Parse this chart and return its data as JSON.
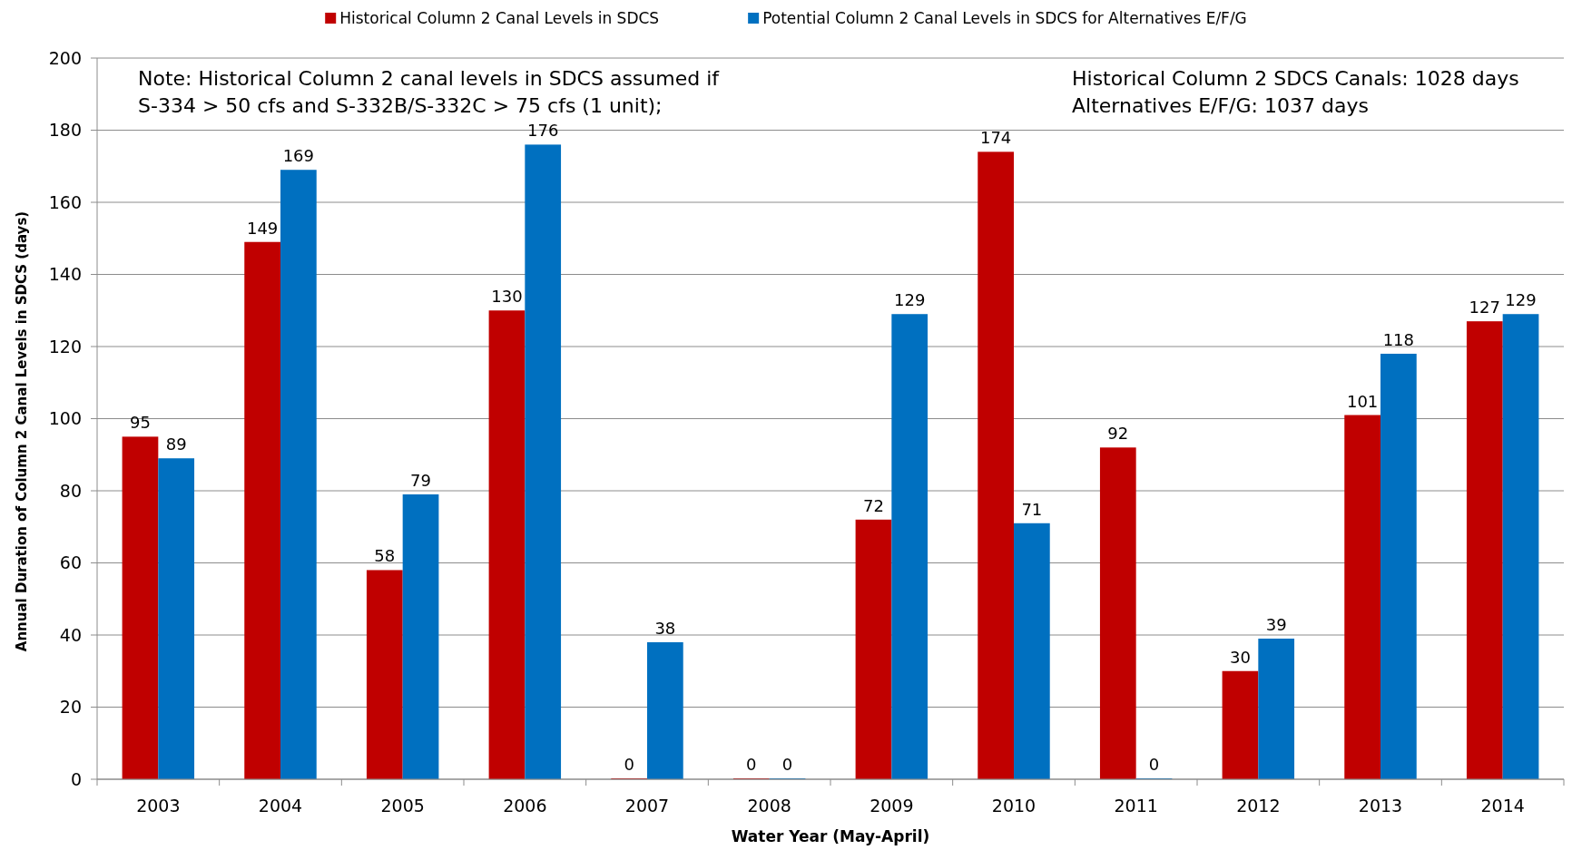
{
  "chart_data": {
    "type": "bar",
    "title": null,
    "categories": [
      "2003",
      "2004",
      "2005",
      "2006",
      "2007",
      "2008",
      "2009",
      "2010",
      "2011",
      "2012",
      "2013",
      "2014"
    ],
    "series": [
      {
        "name": "Historical Column 2 Canal Levels in SDCS",
        "color": "#c00000",
        "values": [
          95,
          149,
          58,
          130,
          0,
          0,
          72,
          174,
          92,
          30,
          101,
          127
        ]
      },
      {
        "name": "Potential Column 2 Canal Levels in SDCS for Alternatives E/F/G",
        "color": "#0070c0",
        "values": [
          89,
          169,
          79,
          176,
          38,
          0,
          129,
          71,
          0,
          39,
          118,
          129
        ]
      }
    ],
    "xlabel": "Water Year (May-April)",
    "ylabel": "Annual Duration of Column 2 Canal Levels in SDCS (days)",
    "ylim": [
      0,
      200
    ],
    "yticks": [
      0,
      20,
      40,
      60,
      80,
      100,
      120,
      140,
      160,
      180,
      200
    ],
    "grid": "y",
    "legend": "top",
    "data_labels": true,
    "annotations": [
      "Note: Historical Column 2 canal levels in SDCS assumed if S-334 > 50 cfs and S-332B/S-332C > 75 cfs (1 unit);",
      "Historical Column 2 SDCS Canals: 1028 days",
      "Alternatives E/F/G: 1037 days"
    ]
  }
}
